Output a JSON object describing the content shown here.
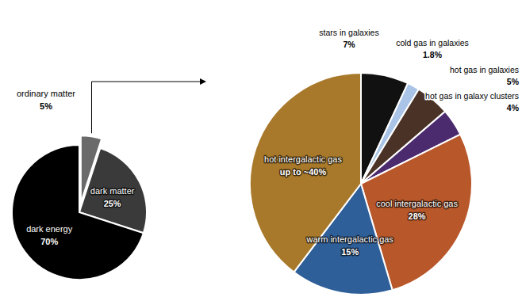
{
  "chart_data": [
    {
      "type": "pie",
      "categories": [
        "ordinary matter",
        "dark matter",
        "dark energy"
      ],
      "values": [
        5,
        25,
        70
      ],
      "value_labels": [
        "5%",
        "25%",
        "70%"
      ],
      "colors": [
        "#6a6a6a",
        "#3a3a3a",
        "#000000"
      ],
      "data_labels": true
    },
    {
      "type": "pie",
      "categories": [
        "stars in galaxies",
        "cold gas in galaxies",
        "hot gas in galaxies",
        "hot gas in galaxy clusters",
        "cool intergalactic gas",
        "warm intergalactic gas",
        "hot intergalactic gas"
      ],
      "values": [
        7,
        1.8,
        5,
        4,
        28,
        15,
        40
      ],
      "value_labels": [
        "7%",
        "1.8%",
        "5%",
        "4%",
        "28%",
        "15%",
        "up to ~40%"
      ],
      "colors": [
        "#111111",
        "#a9c4e6",
        "#4a3226",
        "#4b2a6e",
        "#b8572a",
        "#2f5f99",
        "#a8792b"
      ],
      "data_labels": true
    }
  ]
}
